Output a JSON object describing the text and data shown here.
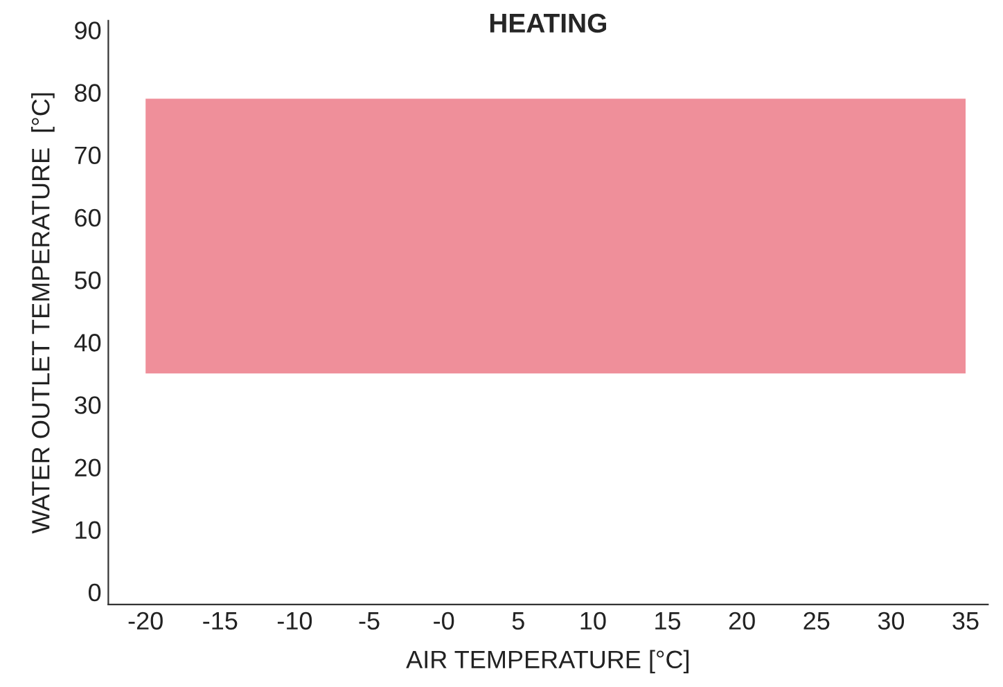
{
  "chart_data": {
    "type": "area",
    "title": "HEATING",
    "xlabel": "AIR TEMPERATURE [°C]",
    "ylabel": "WATER OUTLET TEMPERATURE  [°C]",
    "x": [
      -20,
      35
    ],
    "series": [
      {
        "color": "#ef8f9a",
        "values": [
          null,
          null
        ],
        "lower": [
          35,
          35
        ],
        "upper": [
          79,
          79
        ]
      }
    ],
    "xlim": [
      -22.5,
      36.5
    ],
    "ylim": [
      -2,
      91.5
    ],
    "xticks": [
      -20,
      -15,
      -10,
      -5,
      {
        "value": 0,
        "label": "-0"
      },
      5,
      10,
      15,
      20,
      25,
      30,
      35
    ],
    "yticks": [
      0,
      10,
      20,
      30,
      40,
      50,
      60,
      70,
      80,
      90
    ],
    "grid": false,
    "legend": false
  }
}
